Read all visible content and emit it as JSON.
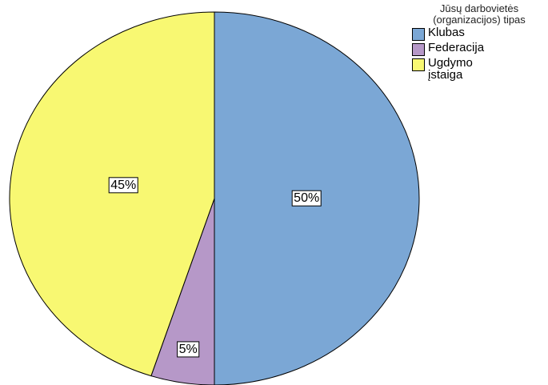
{
  "chart_data": {
    "type": "pie",
    "legend_title": "Jūsų darbovietės (organizacijos) tipas",
    "categories": [
      "Klubas",
      "Federacija",
      "Ugdymo įstaiga"
    ],
    "values": [
      50,
      5,
      45
    ],
    "value_labels": [
      "50%",
      "5%",
      "45%"
    ],
    "colors": [
      "#7ba7d5",
      "#b698c8",
      "#f8f872"
    ],
    "legend": "top-right"
  }
}
